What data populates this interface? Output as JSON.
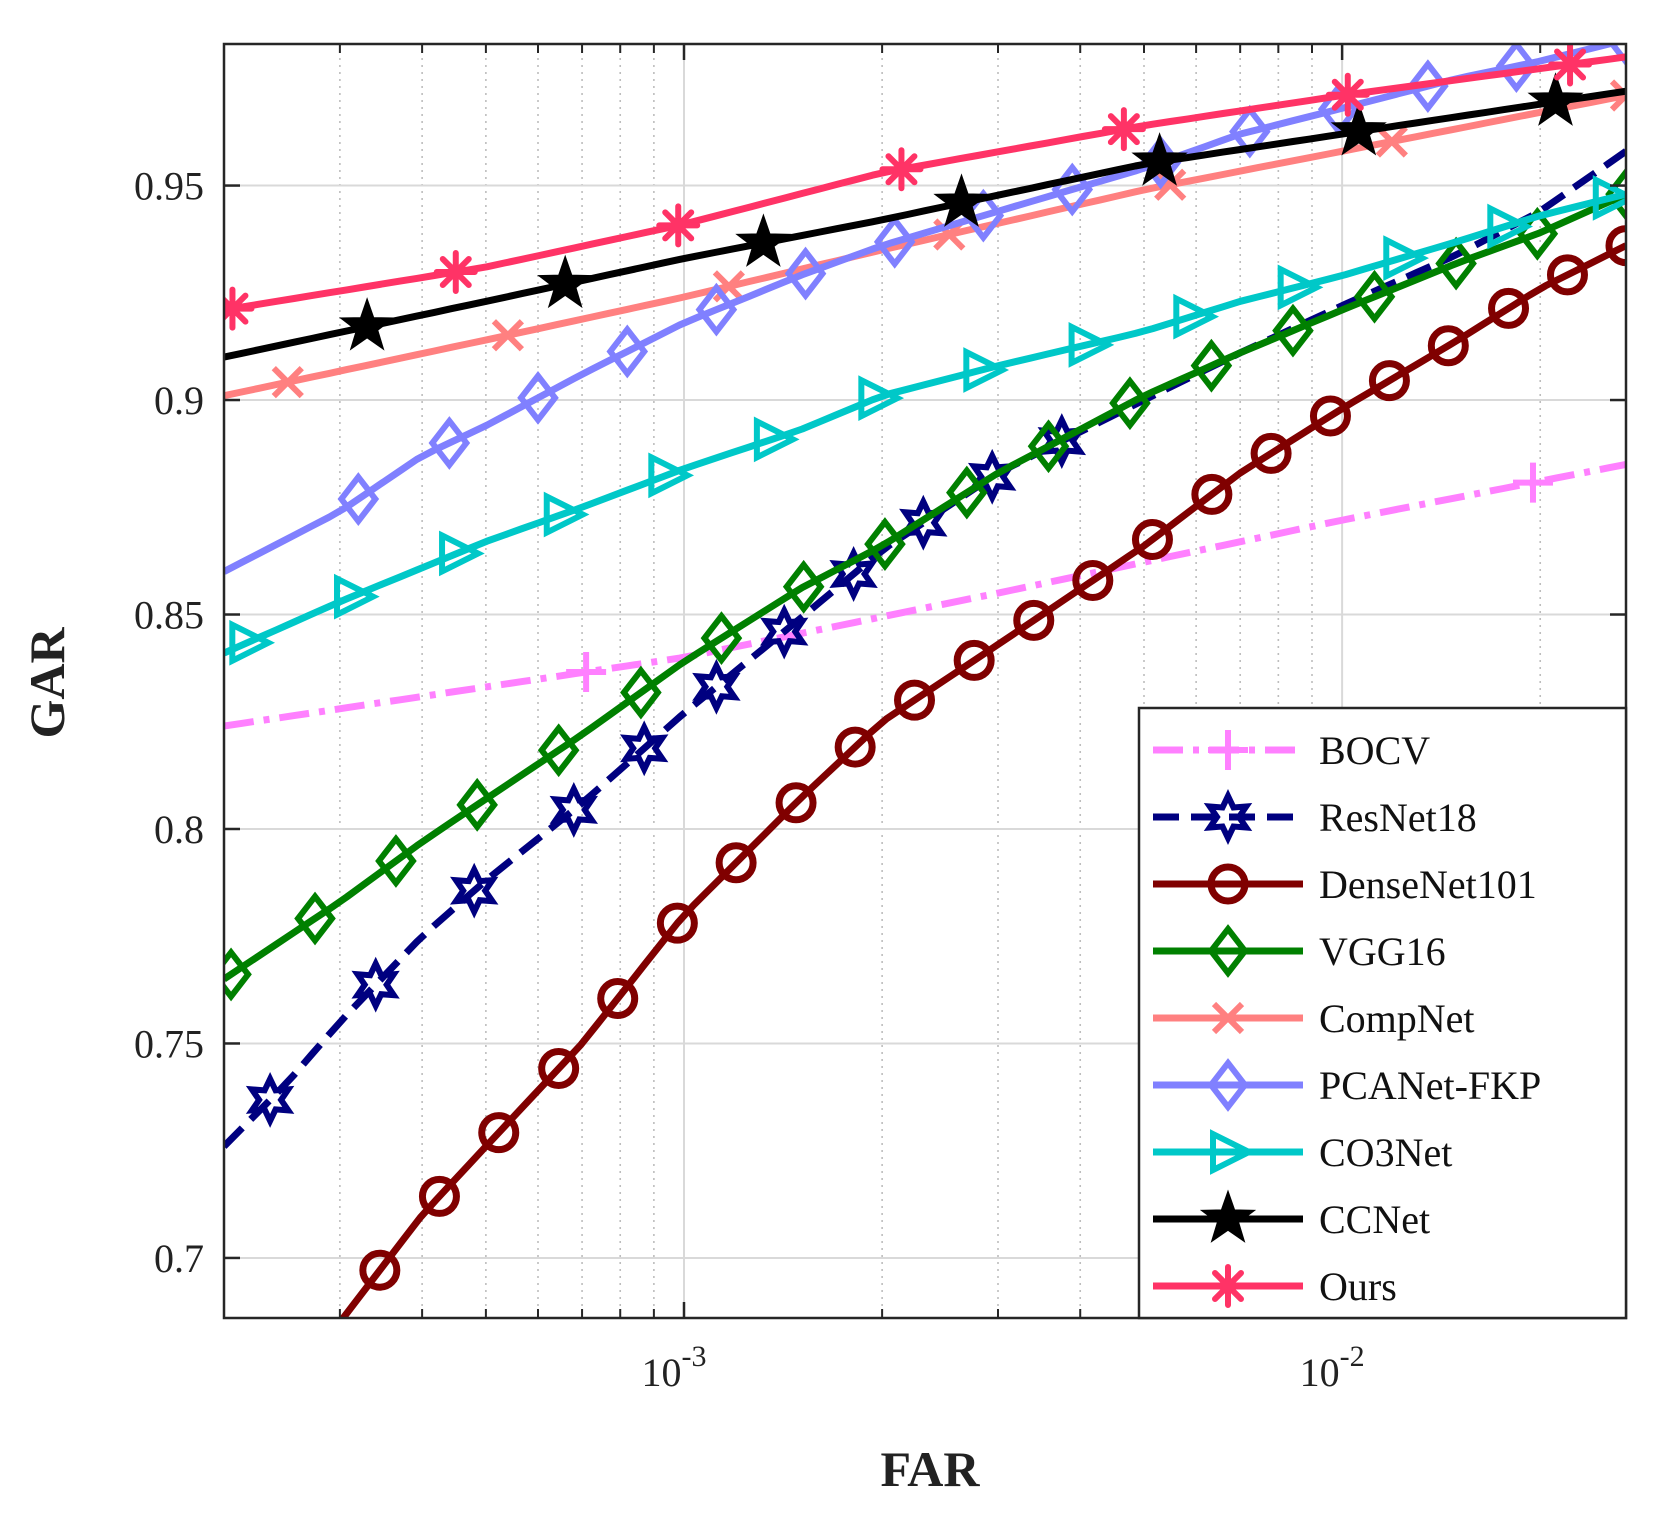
{
  "chart_data": {
    "type": "line",
    "title": "",
    "xlabel": "FAR",
    "ylabel": "GAR",
    "xscale": "log",
    "xlim": [
      0.0002,
      0.027
    ],
    "ylim": [
      0.686,
      0.983
    ],
    "xticks": [
      {
        "value": 0.001,
        "base": "10",
        "exp": "-3"
      },
      {
        "value": 0.01,
        "base": "10",
        "exp": "-2"
      }
    ],
    "yticks": [
      {
        "value": 0.7,
        "label": "0.7"
      },
      {
        "value": 0.75,
        "label": "0.75"
      },
      {
        "value": 0.8,
        "label": "0.8"
      },
      {
        "value": 0.85,
        "label": "0.85"
      },
      {
        "value": 0.9,
        "label": "0.9"
      },
      {
        "value": 0.95,
        "label": "0.95"
      }
    ],
    "grid": true,
    "legend_position": "bottom-right",
    "series": [
      {
        "name": "BOCV",
        "color": "#FF80FF",
        "marker": "plus",
        "dash": "dashdot",
        "markers_at": [
          0.00071,
          0.0195
        ],
        "x": [
          0.0002,
          0.001,
          0.003,
          0.01,
          0.027
        ],
        "y": [
          0.824,
          0.84,
          0.855,
          0.872,
          0.885
        ]
      },
      {
        "name": "ResNet18",
        "color": "#000080",
        "marker": "hexagram",
        "dash": "dashed",
        "markers_at": [
          0.000235,
          0.00034,
          0.00048,
          0.00068,
          0.00087,
          0.00112,
          0.00142,
          0.00181,
          0.00231,
          0.00294,
          0.00375
        ],
        "x": [
          0.0002,
          0.00025,
          0.0003,
          0.0004,
          0.0005,
          0.0007,
          0.001,
          0.0015,
          0.002,
          0.003,
          0.005,
          0.007,
          0.01,
          0.015,
          0.02,
          0.027
        ],
        "y": [
          0.726,
          0.741,
          0.755,
          0.775,
          0.788,
          0.806,
          0.827,
          0.849,
          0.865,
          0.883,
          0.9,
          0.911,
          0.922,
          0.934,
          0.944,
          0.958
        ]
      },
      {
        "name": "DenseNet101",
        "color": "#800000",
        "marker": "circle",
        "dash": "solid",
        "markers_at": [
          0.000345,
          0.000425,
          0.000523,
          0.000645,
          0.000793,
          0.000977,
          0.0012,
          0.00148,
          0.00182,
          0.00224,
          0.00276,
          0.0034,
          0.00418,
          0.00515,
          0.00634,
          0.0078,
          0.0096,
          0.0118,
          0.0145,
          0.0179,
          0.022,
          0.027
        ],
        "x": [
          0.0003,
          0.0004,
          0.0005,
          0.0007,
          0.001,
          0.0015,
          0.002,
          0.003,
          0.005,
          0.007,
          0.01,
          0.015,
          0.02,
          0.027
        ],
        "y": [
          0.685,
          0.71,
          0.726,
          0.75,
          0.78,
          0.807,
          0.825,
          0.843,
          0.866,
          0.883,
          0.898,
          0.914,
          0.926,
          0.936
        ]
      },
      {
        "name": "VGG16",
        "color": "#008000",
        "marker": "diamond",
        "dash": "solid",
        "markers_at": [
          0.000205,
          0.000275,
          0.000365,
          0.000485,
          0.000645,
          0.00086,
          0.00114,
          0.00152,
          0.00202,
          0.00269,
          0.00358,
          0.00476,
          0.00633,
          0.00842,
          0.0112,
          0.0149,
          0.0198,
          0.027
        ],
        "x": [
          0.0002,
          0.0003,
          0.0004,
          0.0005,
          0.0007,
          0.001,
          0.0015,
          0.002,
          0.003,
          0.005,
          0.007,
          0.01,
          0.015,
          0.02,
          0.027
        ],
        "y": [
          0.765,
          0.783,
          0.797,
          0.807,
          0.822,
          0.839,
          0.856,
          0.866,
          0.883,
          0.901,
          0.911,
          0.921,
          0.932,
          0.939,
          0.948
        ]
      },
      {
        "name": "CompNet",
        "color": "#FF8080",
        "marker": "x",
        "dash": "solid",
        "markers_at": [
          0.00025,
          0.00054,
          0.00117,
          0.00253,
          0.00548,
          0.0119,
          0.027
        ],
        "x": [
          0.0002,
          0.0005,
          0.001,
          0.002,
          0.005,
          0.01,
          0.027
        ],
        "y": [
          0.901,
          0.914,
          0.924,
          0.935,
          0.949,
          0.958,
          0.971
        ]
      },
      {
        "name": "PCANet-FKP",
        "color": "#8080FF",
        "marker": "diamond",
        "dash": "solid",
        "markers_at": [
          0.00032,
          0.00044,
          0.0006,
          0.00082,
          0.00112,
          0.00153,
          0.00209,
          0.00285,
          0.00389,
          0.0053,
          0.00724,
          0.00988,
          0.0135,
          0.0184,
          0.027
        ],
        "x": [
          0.0002,
          0.0003,
          0.0004,
          0.0005,
          0.0007,
          0.001,
          0.0015,
          0.002,
          0.003,
          0.005,
          0.007,
          0.01,
          0.015,
          0.02,
          0.027
        ],
        "y": [
          0.86,
          0.874,
          0.887,
          0.894,
          0.906,
          0.918,
          0.929,
          0.936,
          0.944,
          0.954,
          0.962,
          0.968,
          0.975,
          0.979,
          0.984
        ]
      },
      {
        "name": "CO3Net",
        "color": "#00C8C8",
        "marker": "triangle-right",
        "dash": "solid",
        "markers_at": [
          0.000217,
          0.000313,
          0.000452,
          0.000652,
          0.00094,
          0.00136,
          0.00196,
          0.00283,
          0.00409,
          0.0059,
          0.0085,
          0.0123,
          0.0177,
          0.0256
        ],
        "x": [
          0.0002,
          0.0003,
          0.0005,
          0.0007,
          0.001,
          0.0015,
          0.002,
          0.003,
          0.005,
          0.007,
          0.01,
          0.015,
          0.02,
          0.027
        ],
        "y": [
          0.841,
          0.853,
          0.867,
          0.875,
          0.884,
          0.893,
          0.901,
          0.908,
          0.916,
          0.923,
          0.929,
          0.937,
          0.943,
          0.948
        ]
      },
      {
        "name": "CCNet",
        "color": "#000000",
        "marker": "pentagram",
        "dash": "solid",
        "markers_at": [
          0.00033,
          0.00066,
          0.00132,
          0.00264,
          0.00528,
          0.0106,
          0.0211
        ],
        "x": [
          0.0002,
          0.0005,
          0.001,
          0.002,
          0.005,
          0.01,
          0.027
        ],
        "y": [
          0.91,
          0.923,
          0.933,
          0.942,
          0.955,
          0.962,
          0.972
        ]
      },
      {
        "name": "Ours",
        "color": "#FF3366",
        "marker": "asterisk",
        "dash": "solid",
        "markers_at": [
          0.000206,
          0.00045,
          0.00098,
          0.00214,
          0.00466,
          0.0102,
          0.0222
        ],
        "x": [
          0.0002,
          0.0005,
          0.001,
          0.002,
          0.005,
          0.01,
          0.027
        ],
        "y": [
          0.921,
          0.931,
          0.941,
          0.953,
          0.964,
          0.971,
          0.98
        ]
      }
    ]
  }
}
